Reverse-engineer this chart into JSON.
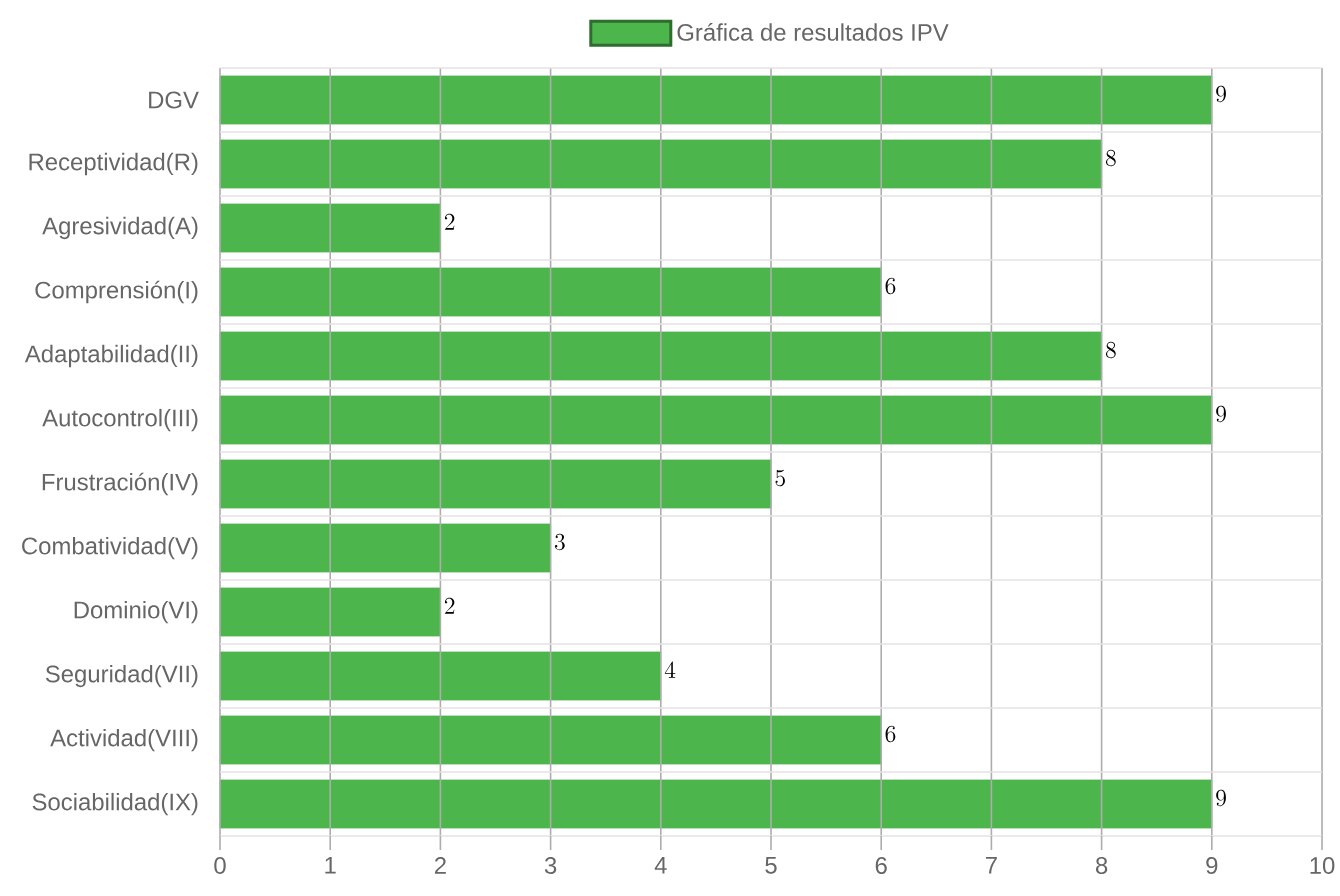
{
  "chart_data": {
    "type": "bar",
    "orientation": "horizontal",
    "categories": [
      "DGV",
      "Receptividad(R)",
      "Agresividad(A)",
      "Comprensión(I)",
      "Adaptabilidad(II)",
      "Autocontrol(III)",
      "Frustración(IV)",
      "Combatividad(V)",
      "Dominio(VI)",
      "Seguridad(VII)",
      "Actividad(VIII)",
      "Sociabilidad(IX)"
    ],
    "series": [
      {
        "name": "Gráfica de resultados IPV",
        "color": "#4cb54c",
        "values": [
          9,
          8,
          2,
          6,
          8,
          9,
          5,
          3,
          2,
          4,
          6,
          9
        ]
      }
    ],
    "xlim": [
      0,
      10
    ],
    "xticks": [
      0,
      1,
      2,
      3,
      4,
      5,
      6,
      7,
      8,
      9,
      10
    ],
    "grid": true,
    "legend": "top",
    "data_labels": true
  }
}
